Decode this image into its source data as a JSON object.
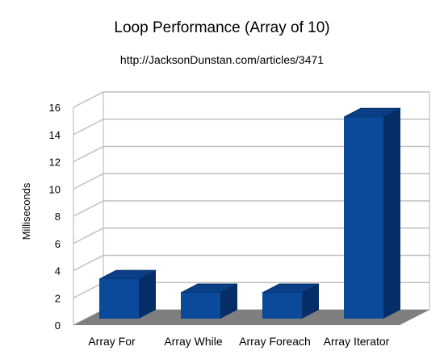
{
  "chart_data": {
    "type": "bar",
    "title": "Loop Performance (Array of 10)",
    "subtitle": "http://JacksonDunstan.com/articles/3471",
    "xlabel": "",
    "ylabel": "Milliseconds",
    "categories": [
      "Array For",
      "Array While",
      "Array Foreach",
      "Array Iterator"
    ],
    "values": [
      2.9,
      1.9,
      1.9,
      14.8
    ],
    "ylim": [
      0,
      16
    ],
    "yticks": [
      0,
      2,
      4,
      6,
      8,
      10,
      12,
      14,
      16
    ],
    "grid": true,
    "legend": "none",
    "style": "3d-columns"
  },
  "colors": {
    "bar_front": "#0b4a9a",
    "bar_side": "#062e66",
    "bar_top": "#0a3f85",
    "floor": "#7f7f7f",
    "grid": "#bfbfbf",
    "axis": "#b3b3b3"
  }
}
